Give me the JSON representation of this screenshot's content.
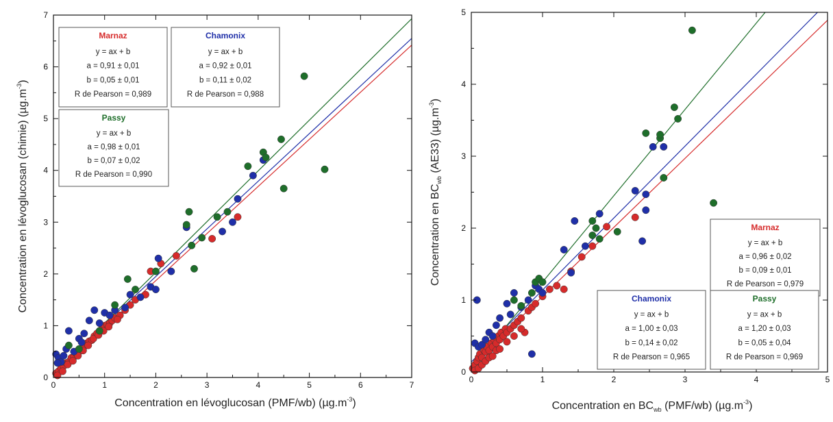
{
  "chart_data": [
    {
      "type": "scatter",
      "xlabel": "Concentration en lévoglucosan (PMF/wb) (µg.m",
      "xlabel_sup": "-3",
      "xlabel_end": ")",
      "ylabel": "Concentration en lévoglucosan (chimie) (µg.m",
      "ylabel_sup": "-3",
      "ylabel_end": ")",
      "xlim": [
        0,
        7
      ],
      "ylim": [
        0,
        7
      ],
      "xticks": [
        "0",
        "1",
        "2",
        "3",
        "4",
        "5",
        "6",
        "7"
      ],
      "yticks": [
        "0",
        "1",
        "2",
        "3",
        "4",
        "5",
        "6",
        "7"
      ],
      "grid": false,
      "series": [
        {
          "name": "Marnaz",
          "color": "#d62b2b",
          "fit": {
            "a": 0.91,
            "b": 0.05
          },
          "legend": [
            "Marnaz",
            "y = ax + b",
            "a = 0,91 ± 0,01",
            "b = 0,05 ± 0,01",
            "R de Pearson = 0,989"
          ],
          "points": [
            [
              0.05,
              0.08
            ],
            [
              0.1,
              0.12
            ],
            [
              0.15,
              0.18
            ],
            [
              0.2,
              0.22
            ],
            [
              0.25,
              0.28
            ],
            [
              0.3,
              0.3
            ],
            [
              0.35,
              0.38
            ],
            [
              0.4,
              0.4
            ],
            [
              0.45,
              0.46
            ],
            [
              0.5,
              0.5
            ],
            [
              0.55,
              0.55
            ],
            [
              0.6,
              0.6
            ],
            [
              0.65,
              0.66
            ],
            [
              0.7,
              0.7
            ],
            [
              0.75,
              0.72
            ],
            [
              0.8,
              0.8
            ],
            [
              0.85,
              0.85
            ],
            [
              0.9,
              0.88
            ],
            [
              0.95,
              0.95
            ],
            [
              1.0,
              1.0
            ],
            [
              1.05,
              1.02
            ],
            [
              1.1,
              1.05
            ],
            [
              1.15,
              1.1
            ],
            [
              1.2,
              1.15
            ],
            [
              1.3,
              1.2
            ],
            [
              1.4,
              1.3
            ],
            [
              1.5,
              1.4
            ],
            [
              1.6,
              1.5
            ],
            [
              1.8,
              1.6
            ],
            [
              1.9,
              2.05
            ],
            [
              2.1,
              2.2
            ],
            [
              2.4,
              2.35
            ],
            [
              3.1,
              2.68
            ],
            [
              3.6,
              3.1
            ],
            [
              0.08,
              0.04
            ],
            [
              0.18,
              0.12
            ],
            [
              0.28,
              0.25
            ],
            [
              0.38,
              0.32
            ],
            [
              0.48,
              0.42
            ],
            [
              0.58,
              0.52
            ],
            [
              0.68,
              0.62
            ],
            [
              0.78,
              0.75
            ],
            [
              0.88,
              0.82
            ],
            [
              0.98,
              0.9
            ],
            [
              1.08,
              0.98
            ],
            [
              1.25,
              1.12
            ]
          ]
        },
        {
          "name": "Chamonix",
          "color": "#1f2fa8",
          "fit": {
            "a": 0.92,
            "b": 0.11
          },
          "legend": [
            "Chamonix",
            "y = ax + b",
            "a = 0,92 ± 0,01",
            "b = 0,11 ± 0,02",
            "R de Pearson = 0,988"
          ],
          "points": [
            [
              0.05,
              0.45
            ],
            [
              0.1,
              0.38
            ],
            [
              0.15,
              0.3
            ],
            [
              0.2,
              0.42
            ],
            [
              0.3,
              0.9
            ],
            [
              0.4,
              0.5
            ],
            [
              0.5,
              0.75
            ],
            [
              0.6,
              0.85
            ],
            [
              0.7,
              1.1
            ],
            [
              0.8,
              1.3
            ],
            [
              0.9,
              1.05
            ],
            [
              1.0,
              1.25
            ],
            [
              1.1,
              1.2
            ],
            [
              1.2,
              1.3
            ],
            [
              1.4,
              1.35
            ],
            [
              1.5,
              1.6
            ],
            [
              1.7,
              1.55
            ],
            [
              1.9,
              1.75
            ],
            [
              2.0,
              1.7
            ],
            [
              2.05,
              2.3
            ],
            [
              2.3,
              2.05
            ],
            [
              2.6,
              2.9
            ],
            [
              3.3,
              2.82
            ],
            [
              3.5,
              3.0
            ],
            [
              3.6,
              3.45
            ],
            [
              3.9,
              3.9
            ],
            [
              4.1,
              4.2
            ],
            [
              0.08,
              0.28
            ],
            [
              0.25,
              0.55
            ],
            [
              0.55,
              0.68
            ]
          ]
        },
        {
          "name": "Passy",
          "color": "#1e6e2a",
          "fit": {
            "a": 0.98,
            "b": 0.07
          },
          "legend": [
            "Passy",
            "y = ax + b",
            "a = 0,98 ± 0,01",
            "b = 0,07 ± 0,02",
            "R de Pearson = 0,990"
          ],
          "points": [
            [
              0.3,
              0.62
            ],
            [
              0.5,
              0.55
            ],
            [
              0.9,
              0.9
            ],
            [
              1.2,
              1.4
            ],
            [
              1.45,
              1.9
            ],
            [
              1.6,
              1.7
            ],
            [
              2.0,
              2.05
            ],
            [
              2.6,
              2.95
            ],
            [
              2.65,
              3.2
            ],
            [
              2.7,
              2.55
            ],
            [
              2.9,
              2.7
            ],
            [
              3.2,
              3.1
            ],
            [
              3.4,
              3.2
            ],
            [
              3.8,
              4.08
            ],
            [
              4.1,
              4.35
            ],
            [
              4.15,
              4.25
            ],
            [
              4.45,
              4.6
            ],
            [
              4.5,
              3.65
            ],
            [
              4.9,
              5.82
            ],
            [
              5.3,
              4.02
            ],
            [
              2.75,
              2.1
            ]
          ]
        }
      ]
    },
    {
      "type": "scatter",
      "xlabel": "Concentration en BC",
      "xlabel_sub": "wb",
      "xlabel_end": " (PMF/wb) (µg.m",
      "xlabel_sup": "-3",
      "xlabel_close": ")",
      "ylabel": "Concentration en BC",
      "ylabel_sub": "wb",
      "ylabel_end": " (AE33) (µg.m",
      "ylabel_sup": "-3",
      "ylabel_close": ")",
      "xlim": [
        0,
        5
      ],
      "ylim": [
        0,
        5
      ],
      "xticks": [
        "0",
        "1",
        "2",
        "3",
        "4",
        "5"
      ],
      "yticks": [
        "0",
        "1",
        "2",
        "3",
        "4",
        "5"
      ],
      "grid": false,
      "series": [
        {
          "name": "Marnaz",
          "color": "#d62b2b",
          "fit": {
            "a": 0.96,
            "b": 0.09
          },
          "legend": [
            "Marnaz",
            "y = ax + b",
            "a = 0,96 ± 0,02",
            "b = 0,09 ± 0,01",
            "R de Pearson = 0,979"
          ],
          "points": [
            [
              0.02,
              0.05
            ],
            [
              0.05,
              0.1
            ],
            [
              0.08,
              0.15
            ],
            [
              0.1,
              0.2
            ],
            [
              0.12,
              0.25
            ],
            [
              0.15,
              0.2
            ],
            [
              0.18,
              0.3
            ],
            [
              0.2,
              0.28
            ],
            [
              0.22,
              0.35
            ],
            [
              0.25,
              0.3
            ],
            [
              0.28,
              0.4
            ],
            [
              0.3,
              0.35
            ],
            [
              0.32,
              0.45
            ],
            [
              0.35,
              0.4
            ],
            [
              0.38,
              0.5
            ],
            [
              0.4,
              0.45
            ],
            [
              0.42,
              0.55
            ],
            [
              0.45,
              0.5
            ],
            [
              0.48,
              0.6
            ],
            [
              0.5,
              0.55
            ],
            [
              0.55,
              0.6
            ],
            [
              0.6,
              0.65
            ],
            [
              0.65,
              0.7
            ],
            [
              0.7,
              0.75
            ],
            [
              0.75,
              0.55
            ],
            [
              0.8,
              0.85
            ],
            [
              0.85,
              0.9
            ],
            [
              0.9,
              0.95
            ],
            [
              1.0,
              1.05
            ],
            [
              1.1,
              1.15
            ],
            [
              1.2,
              1.2
            ],
            [
              1.3,
              1.15
            ],
            [
              1.4,
              1.4
            ],
            [
              1.55,
              1.6
            ],
            [
              1.7,
              1.75
            ],
            [
              1.9,
              2.02
            ],
            [
              2.3,
              2.15
            ],
            [
              0.05,
              0.02
            ],
            [
              0.1,
              0.05
            ],
            [
              0.15,
              0.1
            ],
            [
              0.2,
              0.15
            ],
            [
              0.25,
              0.2
            ],
            [
              0.3,
              0.22
            ],
            [
              0.35,
              0.3
            ],
            [
              0.4,
              0.32
            ],
            [
              0.5,
              0.42
            ],
            [
              0.6,
              0.5
            ],
            [
              0.7,
              0.6
            ]
          ]
        },
        {
          "name": "Chamonix",
          "color": "#1f2fa8",
          "fit": {
            "a": 1.0,
            "b": 0.14
          },
          "legend": [
            "Chamonix",
            "y = ax + b",
            "a = 1,00 ± 0,03",
            "b = 0,14 ± 0,02",
            "R de Pearson = 0,965"
          ],
          "points": [
            [
              0.08,
              1.0
            ],
            [
              0.05,
              0.4
            ],
            [
              0.1,
              0.35
            ],
            [
              0.15,
              0.38
            ],
            [
              0.2,
              0.45
            ],
            [
              0.25,
              0.55
            ],
            [
              0.3,
              0.5
            ],
            [
              0.35,
              0.65
            ],
            [
              0.4,
              0.75
            ],
            [
              0.5,
              0.95
            ],
            [
              0.55,
              0.8
            ],
            [
              0.6,
              1.1
            ],
            [
              0.7,
              0.9
            ],
            [
              0.8,
              1.0
            ],
            [
              0.85,
              0.25
            ],
            [
              0.9,
              1.2
            ],
            [
              0.95,
              1.15
            ],
            [
              1.0,
              1.1
            ],
            [
              1.3,
              1.7
            ],
            [
              1.4,
              1.38
            ],
            [
              1.45,
              2.1
            ],
            [
              1.6,
              1.75
            ],
            [
              1.8,
              2.2
            ],
            [
              2.3,
              2.52
            ],
            [
              2.4,
              1.82
            ],
            [
              2.45,
              2.25
            ],
            [
              2.45,
              2.47
            ],
            [
              2.55,
              3.13
            ],
            [
              2.7,
              3.13
            ]
          ]
        },
        {
          "name": "Passy",
          "color": "#1e6e2a",
          "fit": {
            "a": 1.2,
            "b": 0.05
          },
          "legend": [
            "Passy",
            "y = ax + b",
            "a = 1,20 ± 0,03",
            "b = 0,05 ± 0,04",
            "R de Pearson = 0,969"
          ],
          "points": [
            [
              0.6,
              1.0
            ],
            [
              0.7,
              0.92
            ],
            [
              0.85,
              1.1
            ],
            [
              0.9,
              1.25
            ],
            [
              0.95,
              1.3
            ],
            [
              1.0,
              1.25
            ],
            [
              1.7,
              1.9
            ],
            [
              1.7,
              2.1
            ],
            [
              1.75,
              2.0
            ],
            [
              1.8,
              1.85
            ],
            [
              2.05,
              1.95
            ],
            [
              2.45,
              3.32
            ],
            [
              2.65,
              3.25
            ],
            [
              2.65,
              3.3
            ],
            [
              2.7,
              2.7
            ],
            [
              2.85,
              3.68
            ],
            [
              2.9,
              3.52
            ],
            [
              3.1,
              4.75
            ],
            [
              3.4,
              2.35
            ]
          ]
        }
      ]
    }
  ]
}
